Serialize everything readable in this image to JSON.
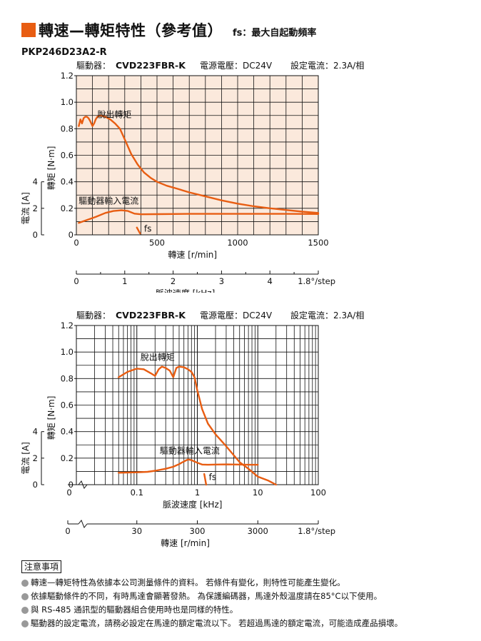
{
  "header": {
    "title": "轉速—轉矩特性（參考值）",
    "subtitle": "fs：最大自起動頻率",
    "model": "PKP246D23A2-R",
    "accent": "#e85d12"
  },
  "chart_data": [
    {
      "type": "line",
      "x_scale": "linear",
      "info_line": {
        "driver_label": "驅動器：",
        "driver": "CVD223FBR-K",
        "supply": "電源電壓：DC24V",
        "current": "設定電流：2.3A/相"
      },
      "bg": "#fbe9dc",
      "xlabel": "轉速 [r/min]",
      "xlim": [
        0,
        1500
      ],
      "xticks": [
        0,
        500,
        1000,
        1500
      ],
      "secondary_xlabel": "脈波速度 [kHz]",
      "secondary_xlim": [
        0,
        5
      ],
      "secondary_xticks": [
        "0",
        "1",
        "2",
        "3",
        "4"
      ],
      "secondary_end": "1.8°/step",
      "ylabel": "轉矩 [N·m]",
      "ylim": [
        0,
        1.2
      ],
      "yticks": [
        "0",
        "0.2",
        "0.4",
        "0.6",
        "0.8",
        "1.0",
        "1.2"
      ],
      "y2label": "電流 [A]",
      "y2lim": [
        0,
        4
      ],
      "y2ticks": [
        "0",
        "2",
        "4"
      ],
      "series": [
        {
          "name": "脫出轉矩",
          "color": "#e85d12",
          "x": [
            15,
            25,
            35,
            45,
            55,
            65,
            75,
            85,
            100,
            110,
            120,
            130,
            150,
            180,
            210,
            240,
            270,
            300,
            340,
            380,
            420,
            460,
            500,
            560,
            620,
            700,
            800,
            900,
            1000,
            1100,
            1200,
            1300,
            1400,
            1500
          ],
          "y": [
            0.82,
            0.87,
            0.84,
            0.88,
            0.89,
            0.89,
            0.88,
            0.86,
            0.82,
            0.84,
            0.87,
            0.89,
            0.9,
            0.89,
            0.87,
            0.84,
            0.8,
            0.72,
            0.61,
            0.53,
            0.47,
            0.43,
            0.4,
            0.37,
            0.35,
            0.32,
            0.29,
            0.26,
            0.235,
            0.215,
            0.2,
            0.187,
            0.175,
            0.165
          ]
        },
        {
          "name": "驅動器輸入電流",
          "color": "#e85d12",
          "x": [
            15,
            60,
            120,
            180,
            230,
            280,
            320,
            360,
            400,
            500,
            700,
            900,
            1100,
            1300,
            1500
          ],
          "y": [
            0.09,
            0.11,
            0.135,
            0.165,
            0.18,
            0.185,
            0.18,
            0.16,
            0.155,
            0.156,
            0.158,
            0.158,
            0.158,
            0.158,
            0.157
          ]
        },
        {
          "name": "fs",
          "color": "#e85d12",
          "x": [
            375,
            395
          ],
          "y": [
            0.055,
            0.01
          ]
        }
      ]
    },
    {
      "type": "line",
      "x_scale": "log",
      "info_line": {
        "driver_label": "驅動器：",
        "driver": "CVD223FBR-K",
        "supply": "電源電壓：DC24V",
        "current": "設定電流：2.3A/相"
      },
      "bg": "#ffffff",
      "xlabel": "脈波速度 [kHz]",
      "xlim": [
        0.01,
        100
      ],
      "xticks": [
        0.1,
        1,
        10,
        100
      ],
      "xtick_labels": [
        "0.1",
        "1",
        "10",
        "100"
      ],
      "secondary_xlabel": "轉速 [r/min]",
      "secondary_xticks": [
        {
          "label": "0",
          "at": 0
        },
        {
          "label": "30",
          "at": 0.1
        },
        {
          "label": "300",
          "at": 1
        },
        {
          "label": "3000",
          "at": 10
        }
      ],
      "secondary_end": "1.8°/step",
      "ylabel": "轉矩 [N·m]",
      "ylim": [
        0,
        1.2
      ],
      "yticks": [
        "0",
        "0.2",
        "0.4",
        "0.6",
        "0.8",
        "1.0",
        "1.2"
      ],
      "y2label": "電流 [A]",
      "y2lim": [
        0,
        4
      ],
      "y2ticks": [
        "0",
        "2",
        "4"
      ],
      "series": [
        {
          "name": "脫出轉矩",
          "color": "#e85d12",
          "x": [
            0.05,
            0.07,
            0.1,
            0.13,
            0.17,
            0.2,
            0.23,
            0.26,
            0.3,
            0.35,
            0.4,
            0.45,
            0.5,
            0.6,
            0.7,
            0.8,
            0.9,
            1.0,
            1.2,
            1.5,
            2.0,
            3.0,
            5.0,
            7.0,
            10,
            15,
            20
          ],
          "y": [
            0.81,
            0.85,
            0.875,
            0.87,
            0.84,
            0.82,
            0.87,
            0.89,
            0.88,
            0.86,
            0.81,
            0.88,
            0.89,
            0.885,
            0.87,
            0.85,
            0.81,
            0.71,
            0.57,
            0.46,
            0.38,
            0.29,
            0.17,
            0.12,
            0.06,
            0.03,
            0.0
          ]
        },
        {
          "name": "驅動器輸入電流",
          "color": "#e85d12",
          "x": [
            0.05,
            0.1,
            0.15,
            0.2,
            0.3,
            0.4,
            0.5,
            0.6,
            0.7,
            0.8,
            1.0,
            1.2,
            1.5,
            2,
            3,
            5,
            7,
            10
          ],
          "y": [
            0.09,
            0.093,
            0.097,
            0.105,
            0.12,
            0.135,
            0.155,
            0.175,
            0.19,
            0.185,
            0.165,
            0.152,
            0.15,
            0.152,
            0.153,
            0.152,
            0.15,
            0.15
          ]
        },
        {
          "name": "fs",
          "color": "#e85d12",
          "x": [
            1.3,
            1.4
          ],
          "y": [
            0.08,
            0.0
          ]
        }
      ]
    }
  ],
  "notes": {
    "title": "注意事項",
    "items": [
      "轉速—轉矩特性為依據本公司測量條件的資料。 若條件有變化，則特性可能產生變化。",
      "依據驅動條件的不同，有時馬達會顯著發熱。 為保護編碼器，馬達外殼溫度請在85°C以下使用。",
      "與 RS-485 通訊型的驅動器組合使用時也是同樣的特性。",
      "驅動器的設定電流，請務必設定在馬達的額定電流以下。 若超過馬達的額定電流，可能造成產品損壞。"
    ]
  }
}
